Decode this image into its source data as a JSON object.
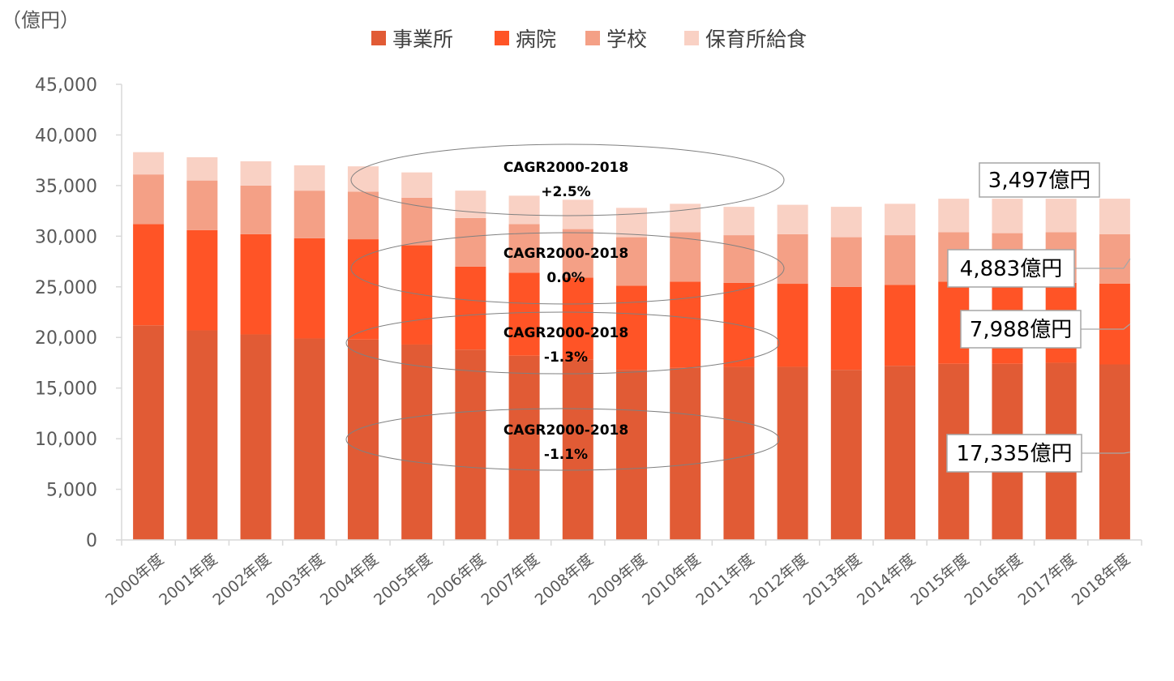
{
  "chart_data": {
    "type": "bar",
    "stacked": true,
    "unit_label": "（億円）",
    "categories": [
      "2000年度",
      "2001年度",
      "2002年度",
      "2003年度",
      "2004年度",
      "2005年度",
      "2006年度",
      "2007年度",
      "2008年度",
      "2009年度",
      "2010年度",
      "2011年度",
      "2012年度",
      "2013年度",
      "2014年度",
      "2015年度",
      "2016年度",
      "2017年度",
      "2018年度"
    ],
    "series": [
      {
        "name": "事業所",
        "color": "#E15B35",
        "values": [
          21200,
          20700,
          20300,
          19900,
          19800,
          19300,
          18800,
          18200,
          17800,
          16800,
          17000,
          17100,
          17100,
          16800,
          17200,
          17400,
          17400,
          17500,
          17335
        ]
      },
      {
        "name": "病院",
        "color": "#FF5426",
        "values": [
          10000,
          9900,
          9900,
          9900,
          9900,
          9800,
          8200,
          8200,
          8100,
          8300,
          8500,
          8300,
          8200,
          8200,
          8000,
          8100,
          7900,
          7900,
          7988
        ]
      },
      {
        "name": "学校",
        "color": "#F4A086",
        "values": [
          4900,
          4900,
          4800,
          4700,
          4700,
          4700,
          4800,
          4800,
          4800,
          4800,
          4900,
          4700,
          4900,
          4900,
          4900,
          4900,
          5000,
          5000,
          4883
        ]
      },
      {
        "name": "保育所給食",
        "color": "#F9D1C4",
        "values": [
          2200,
          2300,
          2400,
          2500,
          2500,
          2500,
          2700,
          2800,
          2900,
          2900,
          2800,
          2800,
          2900,
          3000,
          3100,
          3300,
          3400,
          3300,
          3497
        ]
      }
    ],
    "ylim": [
      0,
      45000
    ],
    "yticks": [
      "0",
      "5,000",
      "10,000",
      "15,000",
      "20,000",
      "25,000",
      "30,000",
      "35,000",
      "40,000",
      "45,000"
    ],
    "legend_position": "top",
    "grid": false,
    "annotations": {
      "cagr": [
        {
          "line1": "CAGR2000-2018",
          "line2": "+2.5%",
          "series": "保育所給食"
        },
        {
          "line1": "CAGR2000-2018",
          "line2": "0.0%",
          "series": "学校"
        },
        {
          "line1": "CAGR2000-2018",
          "line2": "-1.3%",
          "series": "病院"
        },
        {
          "line1": "CAGR2000-2018",
          "line2": "-1.1%",
          "series": "事業所"
        }
      ],
      "callouts": [
        {
          "text": "3,497億円",
          "series": "保育所給食"
        },
        {
          "text": "4,883億円",
          "series": "学校"
        },
        {
          "text": "7,988億円",
          "series": "病院"
        },
        {
          "text": "17,335億円",
          "series": "事業所"
        }
      ]
    }
  }
}
